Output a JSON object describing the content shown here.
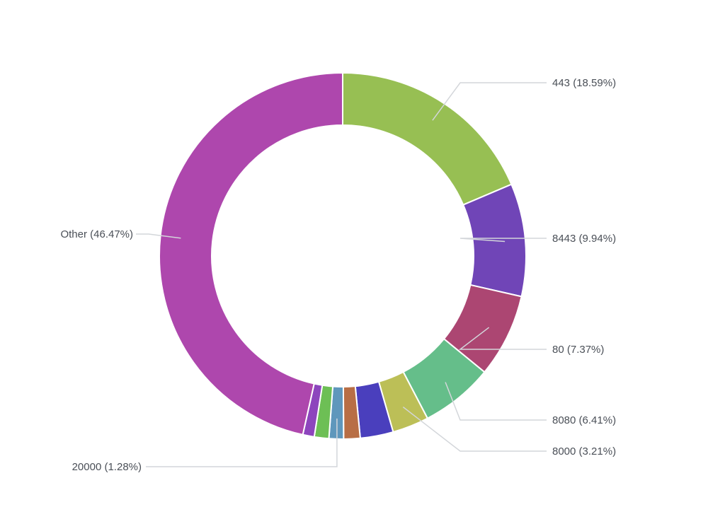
{
  "chart_data": {
    "type": "pie",
    "variant": "donut",
    "title": "",
    "slices": [
      {
        "name": "443",
        "value": 18.59,
        "label": "443 (18.59%)",
        "color": "#97bf53",
        "labeled": true
      },
      {
        "name": "8443",
        "value": 9.94,
        "label": "8443 (9.94%)",
        "color": "#7045b7",
        "labeled": true
      },
      {
        "name": "80",
        "value": 7.37,
        "label": "80 (7.37%)",
        "color": "#ac4672",
        "labeled": true
      },
      {
        "name": "8080",
        "value": 6.41,
        "label": "8080 (6.41%)",
        "color": "#65be8a",
        "labeled": true
      },
      {
        "name": "8000",
        "value": 3.21,
        "label": "8000 (3.21%)",
        "color": "#bcbf57",
        "labeled": true
      },
      {
        "name": "",
        "value": 2.91,
        "label": "",
        "color": "#4a3fbd",
        "labeled": false
      },
      {
        "name": "",
        "value": 1.45,
        "label": "",
        "color": "#b86e45",
        "labeled": false
      },
      {
        "name": "20000",
        "value": 1.28,
        "label": "20000 (1.28%)",
        "color": "#5f97bc",
        "labeled": true
      },
      {
        "name": "",
        "value": 1.28,
        "label": "",
        "color": "#6dbf55",
        "labeled": false
      },
      {
        "name": "",
        "value": 1.01,
        "label": "",
        "color": "#8d45bd",
        "labeled": false
      },
      {
        "name": "Other",
        "value": 46.47,
        "label": "Other (46.47%)",
        "color": "#ae47ad",
        "labeled": true
      }
    ]
  }
}
